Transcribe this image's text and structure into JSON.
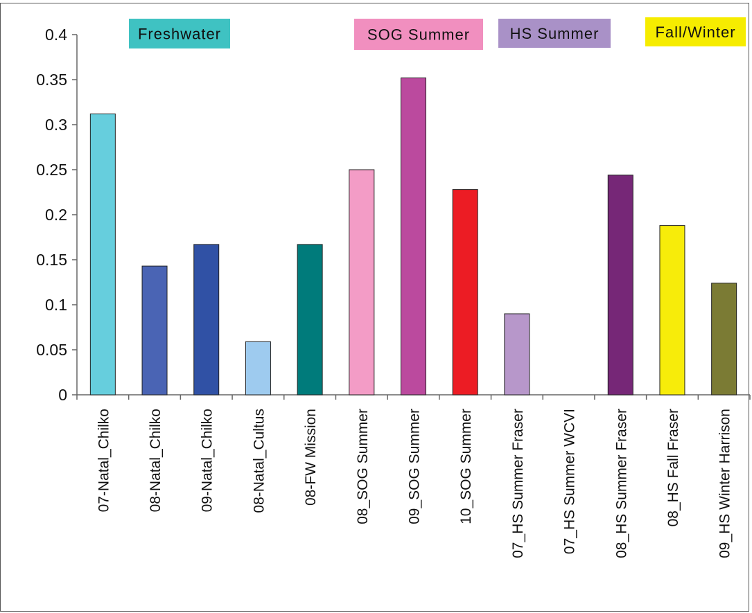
{
  "chart_data": {
    "type": "bar",
    "categories": [
      "07-Natal_Chilko",
      "08-Natal_Chilko",
      "09-Natal_Chilko",
      "08-Natal_Cultus",
      "08-FW Mission",
      "08_SOG Summer",
      "09_SOG Summer",
      "10_SOG Summer",
      "07_HS Summer Fraser",
      "07_HS Summer WCVI",
      "08_HS Summer Fraser",
      "08_HS Fall Fraser",
      "09_HS Winter Harrison"
    ],
    "values": [
      0.312,
      0.143,
      0.167,
      0.059,
      0.167,
      0.25,
      0.352,
      0.228,
      0.09,
      0,
      0.244,
      0.188,
      0.124
    ],
    "bar_colors": [
      "#66cedd",
      "#4a64b4",
      "#3051a5",
      "#9ecbef",
      "#007b7b",
      "#f39cc6",
      "#bb4a9e",
      "#ec1c24",
      "#b797ca",
      "#ffffff",
      "#762777",
      "#f7ec0a",
      "#7b7b34"
    ],
    "title": "",
    "xlabel": "",
    "ylabel": "",
    "ylim": [
      0,
      0.4
    ],
    "yticks": [
      "0",
      "0.05",
      "0.1",
      "0.15",
      "0.2",
      "0.25",
      "0.3",
      "0.35",
      "0.4"
    ],
    "grid": false,
    "group_labels": [
      {
        "text": "Freshwater",
        "bg": "#3fc2c2",
        "fg": "#111111"
      },
      {
        "text": "SOG Summer",
        "bg": "#f18fbf",
        "fg": "#111111"
      },
      {
        "text": "HS Summer",
        "bg": "#a991c7",
        "fg": "#111111"
      },
      {
        "text": "Fall/Winter",
        "bg": "#f6ec00",
        "fg": "#111111"
      }
    ]
  }
}
